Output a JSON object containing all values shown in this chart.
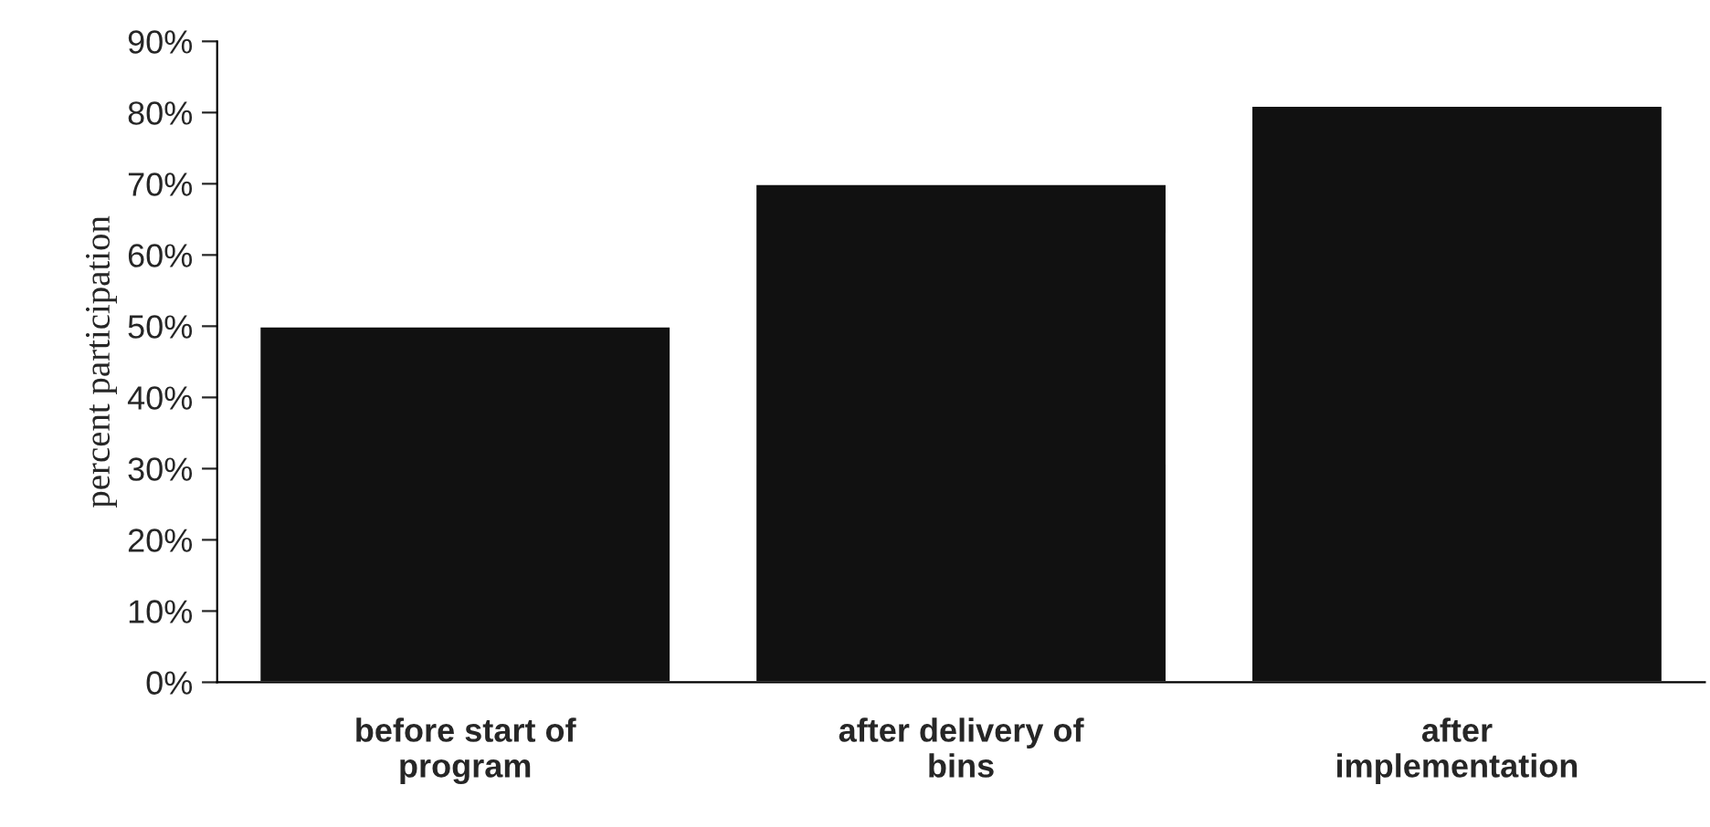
{
  "chart_data": {
    "type": "bar",
    "categories": [
      "before start of\nprogram",
      "after delivery of\nbins",
      "after\nimplementation"
    ],
    "values": [
      50,
      70,
      81
    ],
    "color": "#111111",
    "ylabel": "percent participation",
    "ylim": [
      0,
      90
    ],
    "yticks": [
      {
        "value": 0,
        "label": "0%"
      },
      {
        "value": 10,
        "label": "10%"
      },
      {
        "value": 20,
        "label": "20%"
      },
      {
        "value": 30,
        "label": "30%"
      },
      {
        "value": 40,
        "label": "40%"
      },
      {
        "value": 50,
        "label": "50%"
      },
      {
        "value": 60,
        "label": "60%"
      },
      {
        "value": 70,
        "label": "70%"
      },
      {
        "value": 80,
        "label": "80%"
      },
      {
        "value": 90,
        "label": "90%"
      }
    ],
    "grid": false,
    "legend": false
  }
}
